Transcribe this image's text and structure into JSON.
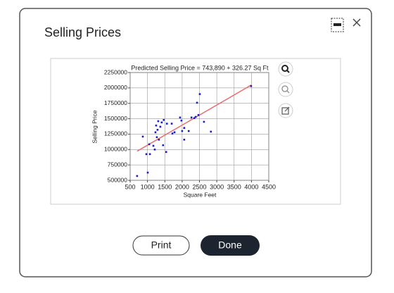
{
  "dialog": {
    "title": "Selling Prices",
    "print": "Print",
    "done": "Done"
  },
  "chart_data": {
    "type": "scatter",
    "title": "Predicted Selling Price = 743,890 + 326.27 Sq Ft",
    "xlabel": "Square Feet",
    "ylabel": "Selling Price",
    "x": [
      700,
      865,
      967,
      1008,
      1050,
      1070,
      1170,
      1210,
      1230,
      1250,
      1270,
      1290,
      1310,
      1330,
      1370,
      1410,
      1450,
      1470,
      1540,
      1560,
      1700,
      1720,
      1780,
      1940,
      1980,
      2000,
      2060,
      2060,
      2190,
      2270,
      2350,
      2390,
      2430,
      2470,
      2510,
      2630,
      2830,
      3990
    ],
    "values": [
      570000,
      1210000,
      925000,
      625000,
      1085000,
      925000,
      1060000,
      1000000,
      1280000,
      1390000,
      1200000,
      1320000,
      1460000,
      1160000,
      1370000,
      1440000,
      1070000,
      1480000,
      960000,
      1420000,
      1420000,
      1260000,
      1280000,
      1520000,
      1470000,
      1300000,
      1350000,
      1160000,
      1300000,
      1520000,
      1510000,
      1530000,
      1760000,
      1560000,
      1900000,
      1450000,
      1290000,
      2030000
    ],
    "color": "#1a1ad0",
    "fit_line": {
      "x": [
        700,
        4000
      ],
      "values": [
        972279,
        2048970
      ],
      "color": "#e87070"
    },
    "xlim": [
      500,
      4500
    ],
    "xticks": [
      500,
      1000,
      1500,
      2000,
      2500,
      3000,
      3500,
      4000,
      4500
    ],
    "ylim": [
      500000,
      2250000
    ],
    "yticks": [
      500000,
      750000,
      1000000,
      1250000,
      1500000,
      1750000,
      2000000,
      2250000
    ],
    "grid": true
  }
}
